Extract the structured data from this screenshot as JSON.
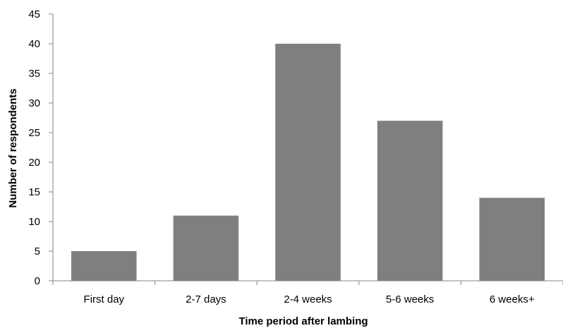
{
  "chart_data": {
    "type": "bar",
    "title": "",
    "xlabel": "Time period after lambing",
    "ylabel": "Number of respondents",
    "categories": [
      "First day",
      "2-7 days",
      "2-4 weeks",
      "5-6 weeks",
      "6 weeks+"
    ],
    "values": [
      5,
      11,
      40,
      27,
      14
    ],
    "ylim": [
      0,
      45
    ],
    "yticks": [
      "0",
      "5",
      "10",
      "15",
      "20",
      "25",
      "30",
      "35",
      "40",
      "45"
    ],
    "grid": false,
    "legend": "none",
    "bar_color": "#7f7f7f",
    "axis_color": "#868686"
  }
}
